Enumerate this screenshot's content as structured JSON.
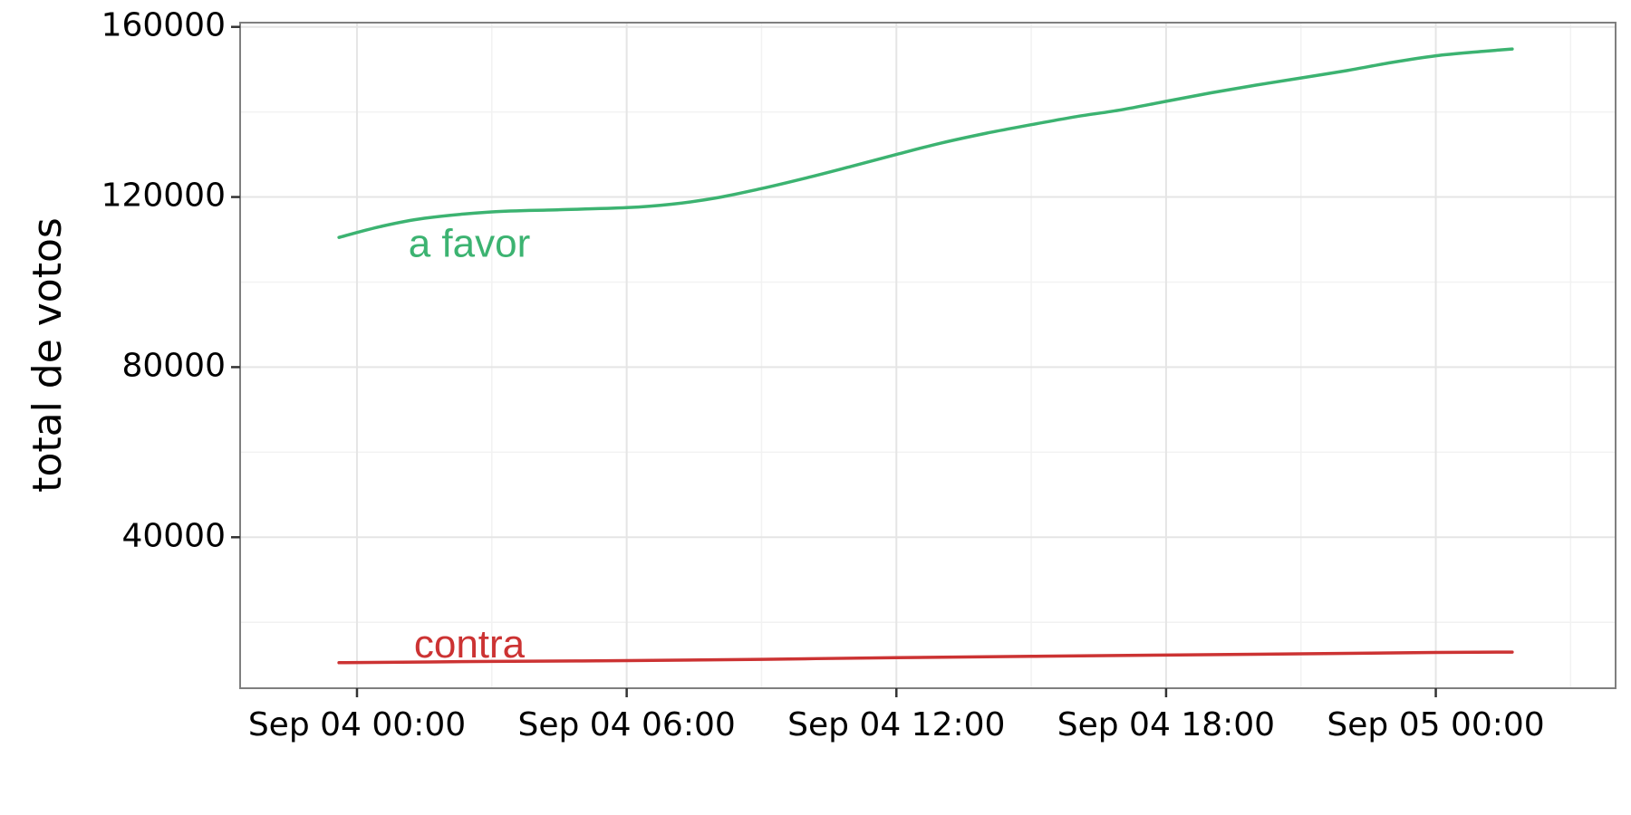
{
  "chart_data": {
    "type": "line",
    "title": "",
    "xlabel": "",
    "ylabel": "total de votos",
    "x_type": "datetime",
    "xlim": [
      "2015-09-03 21:24",
      "2015-09-05 04:00"
    ],
    "ylim": [
      4500,
      161000
    ],
    "x_ticks": [
      "Sep 04 00:00",
      "Sep 04 06:00",
      "Sep 04 12:00",
      "Sep 04 18:00",
      "Sep 05 00:00"
    ],
    "x_tick_values": [
      "2015-09-04 00:00",
      "2015-09-04 06:00",
      "2015-09-04 12:00",
      "2015-09-04 18:00",
      "2015-09-05 00:00"
    ],
    "y_ticks": [
      "40000",
      "80000",
      "120000",
      "160000"
    ],
    "y_tick_values": [
      40000,
      80000,
      120000,
      160000
    ],
    "grid": true,
    "legend": "none",
    "series": [
      {
        "name": "a favor",
        "color": "#3cb371",
        "x": [
          "2015-09-03 23:36",
          "2015-09-04 00:30",
          "2015-09-04 01:30",
          "2015-09-04 03:00",
          "2015-09-04 04:30",
          "2015-09-04 06:00",
          "2015-09-04 07:00",
          "2015-09-04 08:00",
          "2015-09-04 09:00",
          "2015-09-04 10:00",
          "2015-09-04 11:00",
          "2015-09-04 12:00",
          "2015-09-04 13:00",
          "2015-09-04 14:00",
          "2015-09-04 15:00",
          "2015-09-04 16:00",
          "2015-09-04 17:00",
          "2015-09-04 18:00",
          "2015-09-04 19:00",
          "2015-09-04 20:00",
          "2015-09-04 21:00",
          "2015-09-04 22:00",
          "2015-09-04 23:00",
          "2015-09-05 00:00",
          "2015-09-05 01:00",
          "2015-09-05 01:42"
        ],
        "y": [
          110500,
          113000,
          115000,
          116500,
          117000,
          117500,
          118300,
          119800,
          122000,
          124500,
          127200,
          130000,
          132700,
          135000,
          137000,
          138900,
          140500,
          142500,
          144500,
          146300,
          148000,
          149700,
          151600,
          153200,
          154200,
          154800
        ]
      },
      {
        "name": "contra",
        "color": "#cc3333",
        "x": [
          "2015-09-03 23:36",
          "2015-09-04 03:00",
          "2015-09-04 06:00",
          "2015-09-04 09:00",
          "2015-09-04 12:00",
          "2015-09-04 15:00",
          "2015-09-04 18:00",
          "2015-09-04 21:00",
          "2015-09-05 00:00",
          "2015-09-05 01:42"
        ],
        "y": [
          10500,
          10800,
          11000,
          11300,
          11700,
          12000,
          12300,
          12600,
          12900,
          13000
        ]
      }
    ],
    "annotations": [
      {
        "text": "a favor",
        "color": "#3cb371",
        "x": "2015-09-04 02:30",
        "y": 106000
      },
      {
        "text": "contra",
        "color": "#cc3333",
        "x": "2015-09-04 02:30",
        "y": 11700
      }
    ]
  }
}
